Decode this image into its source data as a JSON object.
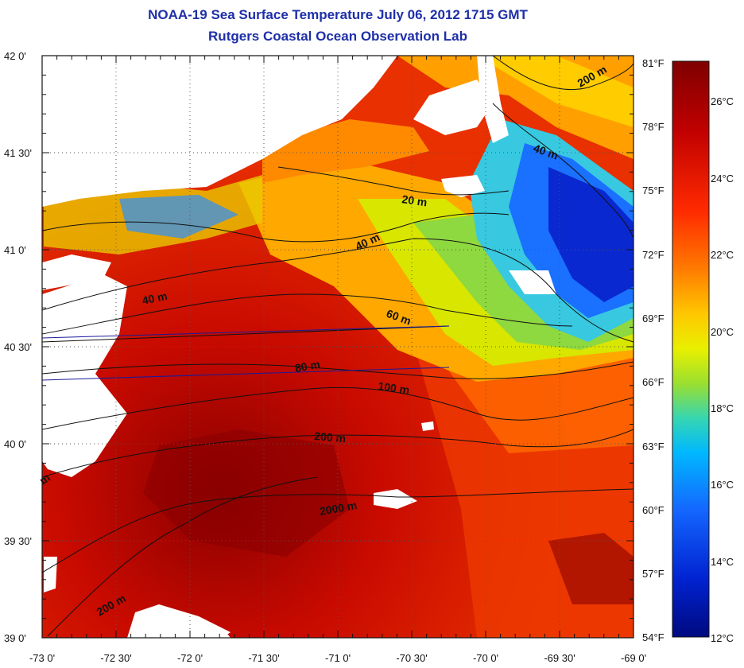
{
  "title": "NOAA-19 Sea Surface Temperature July 06, 2012 1715 GMT",
  "subtitle": "Rutgers Coastal Ocean Observation Lab",
  "map": {
    "lon_ticks": [
      "-73 0'",
      "-72 30'",
      "-72 0'",
      "-71 30'",
      "-71 0'",
      "-70 30'",
      "-70 0'",
      "-69 30'",
      "-69 0'"
    ],
    "lat_ticks": [
      "42 0'",
      "41 30'",
      "41 0'",
      "40 30'",
      "40 0'",
      "39 30'",
      "39 0'"
    ],
    "contour_labels": [
      "200 m",
      "40 m",
      "20 m",
      "40 m",
      "40 m",
      "60 m",
      "80 m",
      "100 m",
      "200 m",
      "2000 m",
      "200 m",
      "m"
    ]
  },
  "colorbar": {
    "fahrenheit": [
      "81°F",
      "78°F",
      "75°F",
      "72°F",
      "69°F",
      "66°F",
      "63°F",
      "60°F",
      "57°F",
      "54°F"
    ],
    "celsius": [
      "26°C",
      "24°C",
      "22°C",
      "20°C",
      "18°C",
      "16°C",
      "14°C",
      "12°C"
    ],
    "colors": [
      "#7f0000",
      "#c00000",
      "#ff2a00",
      "#ff7a00",
      "#ffc800",
      "#e8f000",
      "#9adf30",
      "#36d6b0",
      "#00b8ff",
      "#1466ff",
      "#0022d0",
      "#000a80"
    ]
  }
}
